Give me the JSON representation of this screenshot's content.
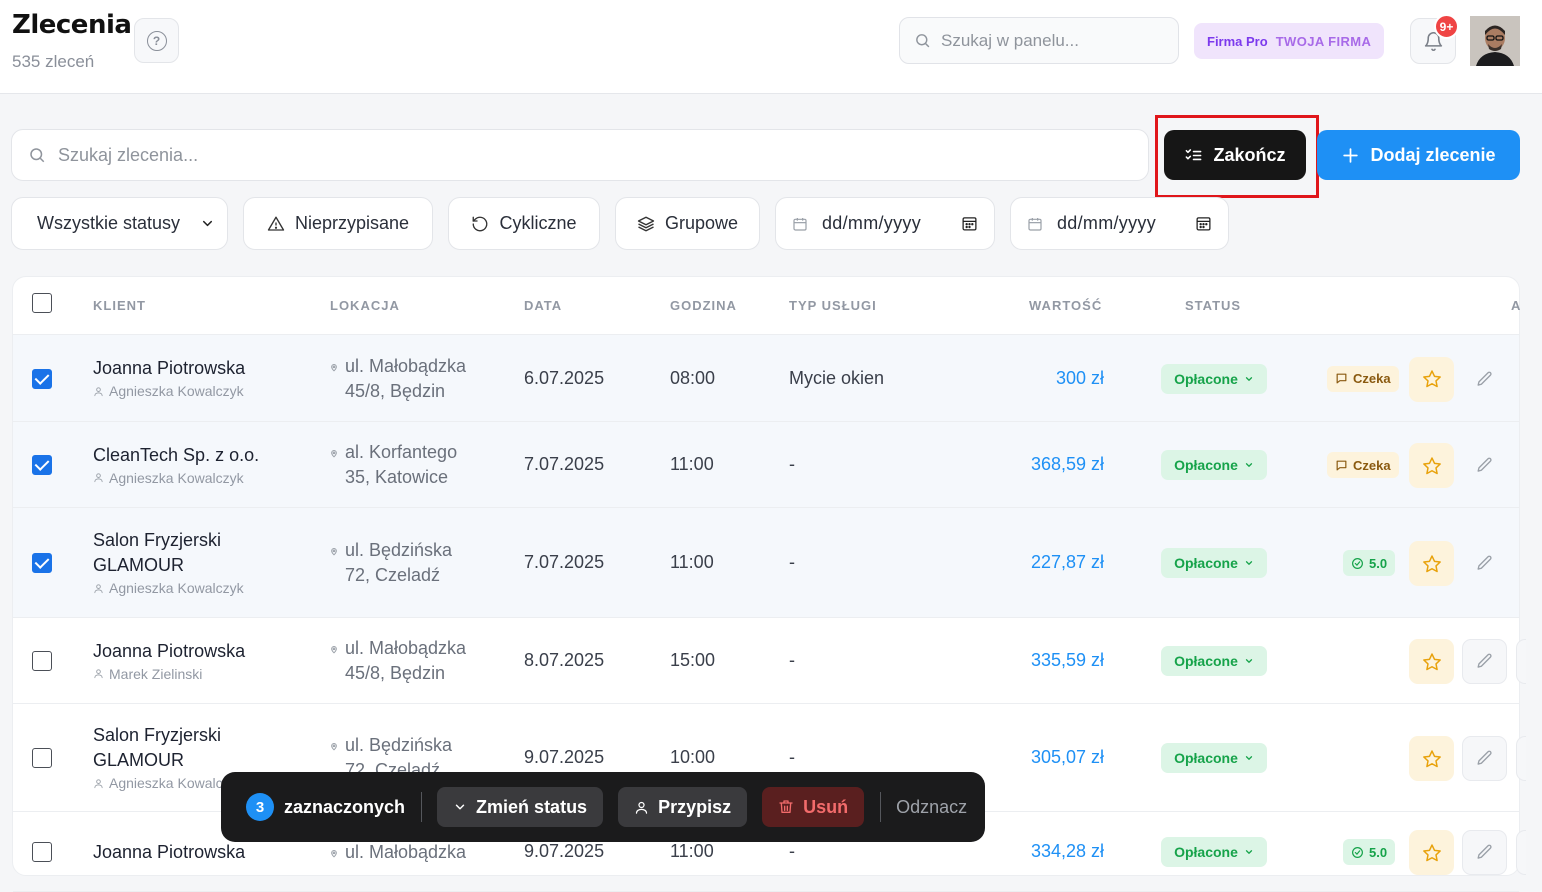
{
  "header": {
    "title": "Zlecenia",
    "subtitle": "535 zleceń",
    "search_placeholder": "Szukaj w panelu...",
    "plan_label": "Firma Pro",
    "company_label": "TWOJA FIRMA",
    "notifications_count": "9+"
  },
  "toolbar": {
    "search_placeholder": "Szukaj zlecenia...",
    "finish_label": "Zakończ",
    "add_label": "Dodaj zlecenie"
  },
  "filters": {
    "status_selected": "Wszystkie statusy",
    "unassigned_label": "Nieprzypisane",
    "cyclic_label": "Cykliczne",
    "group_label": "Grupowe",
    "date_from_placeholder": "dd/mm/yyyy",
    "date_to_placeholder": "dd/mm/yyyy"
  },
  "table": {
    "columns": [
      "KLIENT",
      "LOKACJA",
      "DATA",
      "GODZINA",
      "TYP USŁUGI",
      "WARTOŚĆ",
      "STATUS",
      "A"
    ],
    "rows": [
      {
        "checked": true,
        "client_lines": [
          "Joanna Piotrowska"
        ],
        "assignee": "Agnieszka Kowalczyk",
        "location_lines": [
          "ul. Małobądzka",
          "45/8, Będzin"
        ],
        "date": "6.07.2025",
        "time": "08:00",
        "service": "Mycie okien",
        "value": "300 zł",
        "status": "Opłacone",
        "extra_type": "wait",
        "extra_label": "Czeka"
      },
      {
        "checked": true,
        "client_lines": [
          "CleanTech Sp. z o.o."
        ],
        "assignee": "Agnieszka Kowalczyk",
        "location_lines": [
          "al. Korfantego",
          "35, Katowice"
        ],
        "date": "7.07.2025",
        "time": "11:00",
        "service": "-",
        "value": "368,59 zł",
        "status": "Opłacone",
        "extra_type": "wait",
        "extra_label": "Czeka"
      },
      {
        "checked": true,
        "client_lines": [
          "Salon Fryzjerski",
          "GLAMOUR"
        ],
        "assignee": "Agnieszka Kowalczyk",
        "location_lines": [
          "ul. Będzińska",
          "72, Czeladź"
        ],
        "date": "7.07.2025",
        "time": "11:00",
        "service": "-",
        "value": "227,87 zł",
        "status": "Opłacone",
        "extra_type": "rating",
        "extra_label": "5.0"
      },
      {
        "checked": false,
        "client_lines": [
          "Joanna Piotrowska"
        ],
        "assignee": "Marek Zielinski",
        "location_lines": [
          "ul. Małobądzka",
          "45/8, Będzin"
        ],
        "date": "8.07.2025",
        "time": "15:00",
        "service": "-",
        "value": "335,59 zł",
        "status": "Opłacone",
        "extra_type": "none",
        "extra_label": ""
      },
      {
        "checked": false,
        "client_lines": [
          "Salon Fryzjerski",
          "GLAMOUR"
        ],
        "assignee": "Agnieszka Kowalczyk",
        "location_lines": [
          "ul. Będzińska",
          "72, Czeladź"
        ],
        "date": "9.07.2025",
        "time": "10:00",
        "service": "-",
        "value": "305,07 zł",
        "status": "Opłacone",
        "extra_type": "none",
        "extra_label": ""
      },
      {
        "checked": false,
        "client_lines": [
          "Joanna Piotrowska"
        ],
        "assignee": "",
        "location_lines": [
          "ul. Małobądzka"
        ],
        "date": "9.07.2025",
        "time": "11:00",
        "service": "-",
        "value": "334,28 zł",
        "status": "Opłacone",
        "extra_type": "rating",
        "extra_label": "5.0"
      }
    ]
  },
  "bulk_bar": {
    "count": "3",
    "selected_label": "zaznaczonych",
    "change_status_label": "Zmień status",
    "assign_label": "Przypisz",
    "delete_label": "Usuń",
    "deselect_label": "Odznacz"
  },
  "colors": {
    "accent": "#1e90f5",
    "success_bg": "#dcf5e6",
    "success_text": "#16a34a",
    "danger": "#ef4444",
    "highlight": "#e0161b"
  }
}
